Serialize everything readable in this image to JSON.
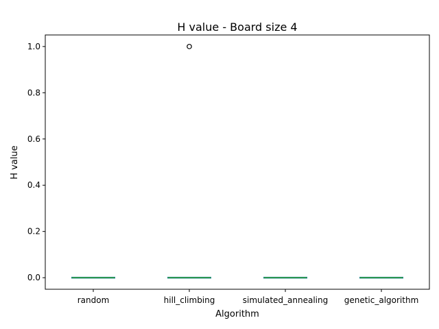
{
  "chart_data": {
    "type": "box",
    "title": "H value - Board size 4",
    "xlabel": "Algorithm",
    "ylabel": "H value",
    "ylim": [
      -0.05,
      1.05
    ],
    "yticks": [
      0.0,
      0.2,
      0.4,
      0.6,
      0.8,
      1.0
    ],
    "ytick_labels": [
      "0.0",
      "0.2",
      "0.4",
      "0.6",
      "0.8",
      "1.0"
    ],
    "grid": false,
    "categories": [
      "random",
      "hill_climbing",
      "simulated_annealing",
      "genetic_algorithm"
    ],
    "boxes": [
      {
        "category": "random",
        "whislo": 0,
        "q1": 0,
        "median": 0,
        "q3": 0,
        "whishi": 0,
        "fliers": []
      },
      {
        "category": "hill_climbing",
        "whislo": 0,
        "q1": 0,
        "median": 0,
        "q3": 0,
        "whishi": 0,
        "fliers": [
          1.0
        ]
      },
      {
        "category": "simulated_annealing",
        "whislo": 0,
        "q1": 0,
        "median": 0,
        "q3": 0,
        "whishi": 0,
        "fliers": []
      },
      {
        "category": "genetic_algorithm",
        "whislo": 0,
        "q1": 0,
        "median": 0,
        "q3": 0,
        "whishi": 0,
        "fliers": []
      }
    ],
    "colors": {
      "box": "#1f77b4",
      "median": "#2ca02c",
      "flier": "#000000",
      "axes": "#000000"
    }
  }
}
